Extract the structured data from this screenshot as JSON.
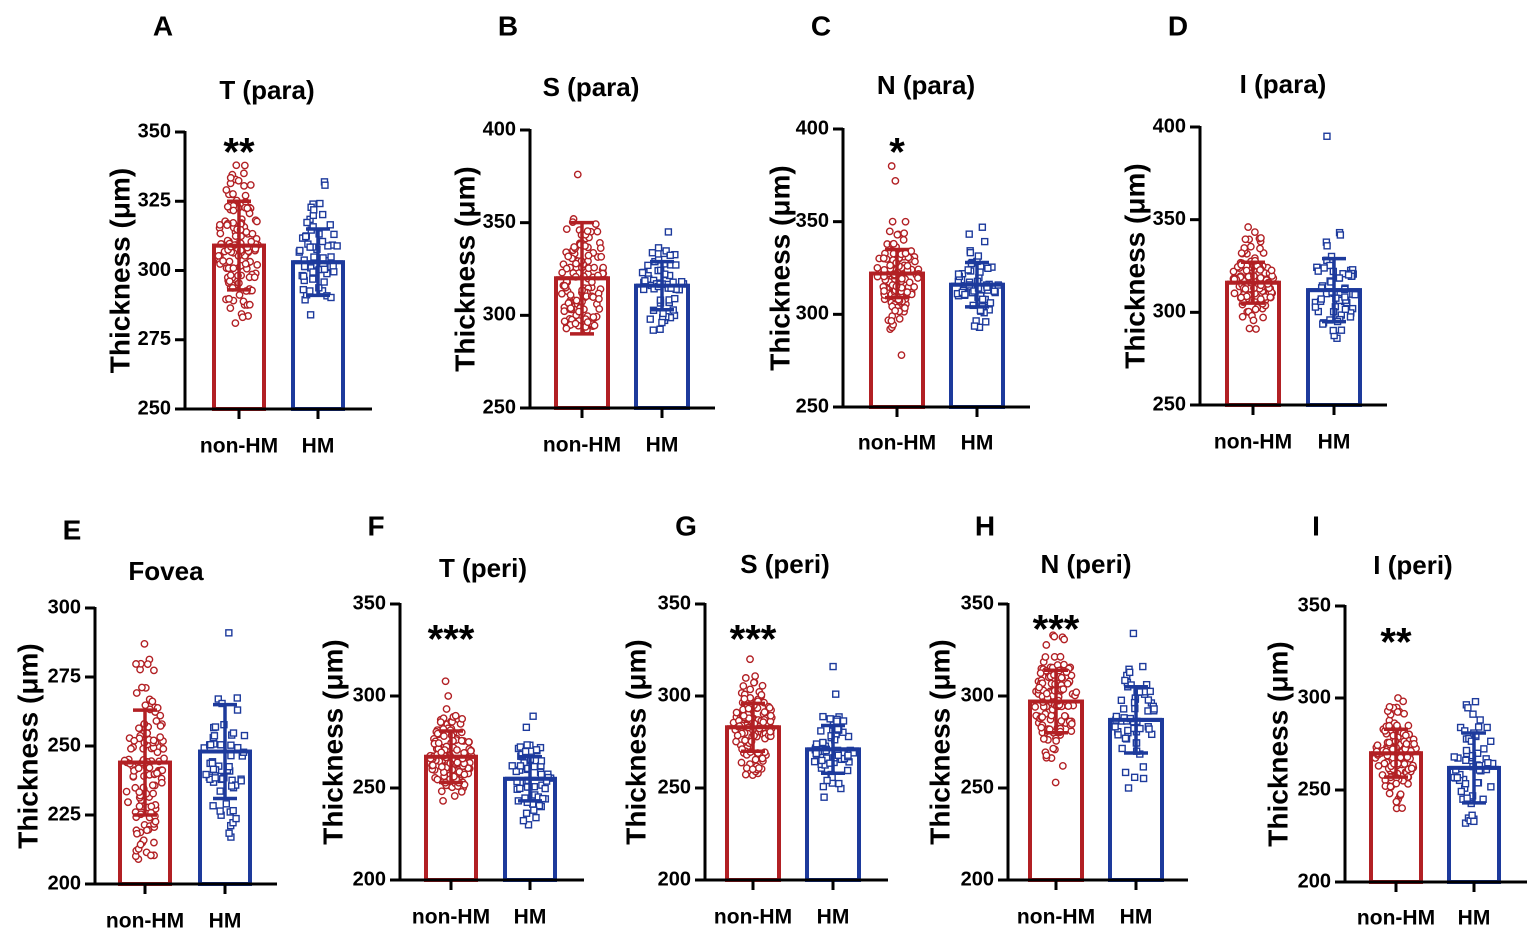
{
  "figure": {
    "y_axis_label": "Thickness (μm)",
    "colors": {
      "non_hm": "#b22024",
      "hm": "#1d3a9c",
      "axis": "#000000"
    }
  },
  "chart_data": [
    {
      "panel_letter": "A",
      "type": "bar",
      "title": "T (para)",
      "ylabel": "Thickness (μm)",
      "categories": [
        "non-HM",
        "HM"
      ],
      "ylim": [
        250,
        350
      ],
      "yticks": [
        250,
        275,
        300,
        325,
        350
      ],
      "values": [
        309,
        303
      ],
      "sd": [
        16,
        12
      ],
      "n": [
        130,
        60
      ],
      "ranges": [
        [
          281,
          338
        ],
        [
          284,
          332
        ]
      ],
      "outliers": [
        [],
        []
      ],
      "significance": "**"
    },
    {
      "panel_letter": "B",
      "type": "bar",
      "title": "S (para)",
      "ylabel": "Thickness (μm)",
      "categories": [
        "non-HM",
        "HM"
      ],
      "ylim": [
        250,
        400
      ],
      "yticks": [
        250,
        300,
        350,
        400
      ],
      "values": [
        320,
        316
      ],
      "sd": [
        30,
        13
      ],
      "n": [
        130,
        60
      ],
      "ranges": [
        [
          292,
          352
        ],
        [
          292,
          345
        ]
      ],
      "outliers": [
        [
          376
        ],
        []
      ],
      "significance": ""
    },
    {
      "panel_letter": "C",
      "type": "bar",
      "title": "N (para)",
      "ylabel": "Thickness (μm)",
      "categories": [
        "non-HM",
        "HM"
      ],
      "ylim": [
        250,
        400
      ],
      "yticks": [
        250,
        300,
        350,
        400
      ],
      "values": [
        322,
        316
      ],
      "sd": [
        13,
        12
      ],
      "n": [
        130,
        60
      ],
      "ranges": [
        [
          292,
          350
        ],
        [
          293,
          347
        ]
      ],
      "outliers": [
        [
          278,
          372,
          380
        ],
        []
      ],
      "significance": "*"
    },
    {
      "panel_letter": "D",
      "type": "bar",
      "title": "I (para)",
      "ylabel": "Thickness (μm)",
      "categories": [
        "non-HM",
        "HM"
      ],
      "ylim": [
        250,
        400
      ],
      "yticks": [
        250,
        300,
        350,
        400
      ],
      "values": [
        316,
        312
      ],
      "sd": [
        11,
        17
      ],
      "n": [
        130,
        60
      ],
      "ranges": [
        [
          291,
          346
        ],
        [
          286,
          343
        ]
      ],
      "outliers": [
        [],
        [
          395
        ]
      ],
      "significance": ""
    },
    {
      "panel_letter": "E",
      "type": "bar",
      "title": "Fovea",
      "ylabel": "Thickness (μm)",
      "categories": [
        "non-HM",
        "HM"
      ],
      "ylim": [
        200,
        300
      ],
      "yticks": [
        200,
        225,
        250,
        275,
        300
      ],
      "values": [
        244,
        248
      ],
      "sd": [
        19,
        17
      ],
      "n": [
        130,
        60
      ],
      "ranges": [
        [
          209,
          287
        ],
        [
          217,
          291
        ]
      ],
      "outliers": [
        [],
        []
      ],
      "significance": ""
    },
    {
      "panel_letter": "F",
      "type": "bar",
      "title": "T (peri)",
      "ylabel": "Thickness (μm)",
      "categories": [
        "non-HM",
        "HM"
      ],
      "ylim": [
        200,
        350
      ],
      "yticks": [
        200,
        250,
        300,
        350
      ],
      "values": [
        267,
        255
      ],
      "sd": [
        14,
        12
      ],
      "n": [
        130,
        60
      ],
      "ranges": [
        [
          243,
          300
        ],
        [
          230,
          289
        ]
      ],
      "outliers": [
        [
          308
        ],
        []
      ],
      "significance": "***"
    },
    {
      "panel_letter": "G",
      "type": "bar",
      "title": "S (peri)",
      "ylabel": "Thickness (μm)",
      "categories": [
        "non-HM",
        "HM"
      ],
      "ylim": [
        200,
        350
      ],
      "yticks": [
        200,
        250,
        300,
        350
      ],
      "values": [
        283,
        271
      ],
      "sd": [
        13,
        13
      ],
      "n": [
        130,
        60
      ],
      "ranges": [
        [
          257,
          320
        ],
        [
          245,
          301
        ]
      ],
      "outliers": [
        [],
        [
          316
        ]
      ],
      "significance": "***"
    },
    {
      "panel_letter": "H",
      "type": "bar",
      "title": "N (peri)",
      "ylabel": "Thickness (μm)",
      "categories": [
        "non-HM",
        "HM"
      ],
      "ylim": [
        200,
        350
      ],
      "yticks": [
        200,
        250,
        300,
        350
      ],
      "values": [
        297,
        287
      ],
      "sd": [
        17,
        18
      ],
      "n": [
        130,
        60
      ],
      "ranges": [
        [
          262,
          333
        ],
        [
          250,
          316
        ]
      ],
      "outliers": [
        [
          253
        ],
        [
          334
        ]
      ],
      "significance": "***"
    },
    {
      "panel_letter": "I",
      "type": "bar",
      "title": "I (peri)",
      "ylabel": "Thickness (μm)",
      "categories": [
        "non-HM",
        "HM"
      ],
      "ylim": [
        200,
        350
      ],
      "yticks": [
        200,
        250,
        300,
        350
      ],
      "values": [
        270,
        262
      ],
      "sd": [
        13,
        19
      ],
      "n": [
        130,
        60
      ],
      "ranges": [
        [
          240,
          300
        ],
        [
          232,
          298
        ]
      ],
      "outliers": [
        [],
        []
      ],
      "significance": "**"
    }
  ]
}
